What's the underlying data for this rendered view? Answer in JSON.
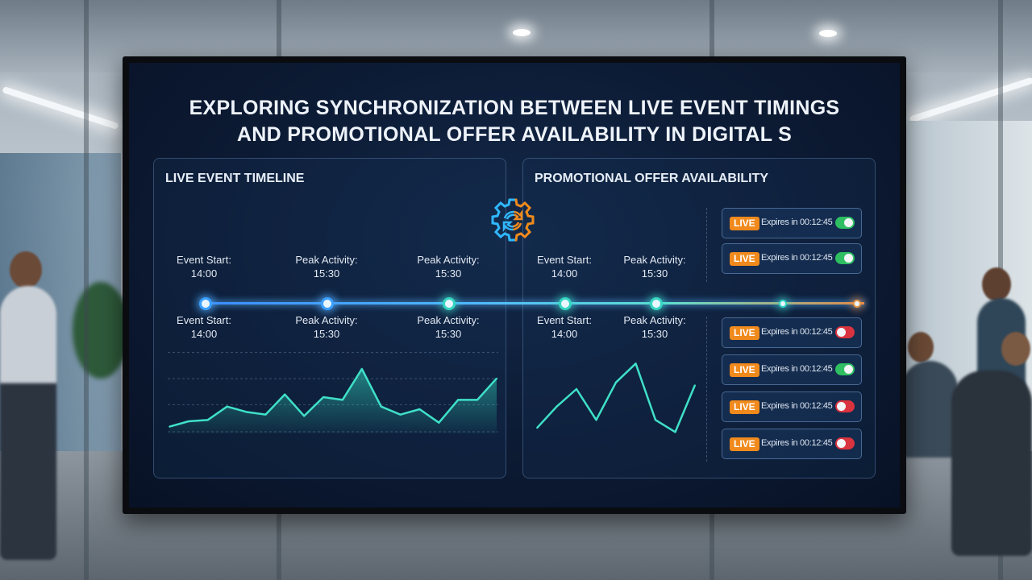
{
  "screen": {
    "title_line1": "EXPLORING SYNCHRONIZATION BETWEEN LIVE EVENT TIMINGS",
    "title_line2": "AND PROMOTIONAL OFFER AVAILABILITY IN DIGITAL S"
  },
  "timeline_panel": {
    "title": "LIVE EVENT TIMELINE",
    "labels_top": [
      {
        "line1": "Event Start:",
        "line2": "14:00"
      },
      {
        "line1": "Peak Activity:",
        "line2": "15:30"
      },
      {
        "line1": "Peak Activity:",
        "line2": "15:30"
      }
    ],
    "labels_bottom": [
      {
        "line1": "Event Start:",
        "line2": "14:00"
      },
      {
        "line1": "Peak Activity:",
        "line2": "15:30"
      },
      {
        "line1": "Peak Activity:",
        "line2": "15:30"
      }
    ]
  },
  "promo_panel": {
    "title": "PROMOTIONAL OFFER AVAILABILITY",
    "labels_top": [
      {
        "line1": "Event Start:",
        "line2": "14:00"
      },
      {
        "line1": "Peak Activity:",
        "line2": "15:30"
      }
    ],
    "labels_bottom": [
      {
        "line1": "Event Start:",
        "line2": "14:00"
      },
      {
        "line1": "Peak Activity:",
        "line2": "15:30"
      }
    ],
    "offers": [
      {
        "badge": "LIVE",
        "text": "Expires in 00:12:45",
        "state": "on"
      },
      {
        "badge": "LIVE",
        "text": "Expires in 00:12:45",
        "state": "on"
      },
      {
        "badge": "LIVE",
        "text": "Expires in 00:12:45",
        "state": "off"
      },
      {
        "badge": "LIVE",
        "text": "Expires in 00:12:45",
        "state": "on"
      },
      {
        "badge": "LIVE",
        "text": "Expires in 00:12:45",
        "state": "off"
      },
      {
        "badge": "LIVE",
        "text": "Expires in 00:12:45",
        "state": "off"
      }
    ]
  },
  "colors": {
    "accent_blue": "#3aa0ff",
    "accent_teal": "#37d6c2",
    "badge_orange": "#f08a1c",
    "toggle_on": "#2fbf62",
    "toggle_off": "#d9333f"
  },
  "icons": {
    "sync": "sync-gear-icon"
  },
  "chart_data": [
    {
      "type": "area",
      "x": [
        0,
        1,
        2,
        3,
        4,
        5,
        6,
        7,
        8,
        9,
        10,
        11,
        12,
        13,
        14,
        15,
        16,
        17
      ],
      "values": [
        5,
        9,
        10,
        20,
        16,
        14,
        29,
        13,
        27,
        25,
        48,
        20,
        14,
        18,
        8,
        25,
        25,
        41
      ],
      "ylim": [
        0,
        60
      ]
    },
    {
      "type": "line",
      "x": [
        0,
        1,
        2,
        3,
        4,
        5,
        6,
        7,
        8
      ],
      "values": [
        4,
        20,
        33,
        10,
        38,
        52,
        10,
        1,
        36
      ],
      "ylim": [
        0,
        60
      ]
    }
  ]
}
